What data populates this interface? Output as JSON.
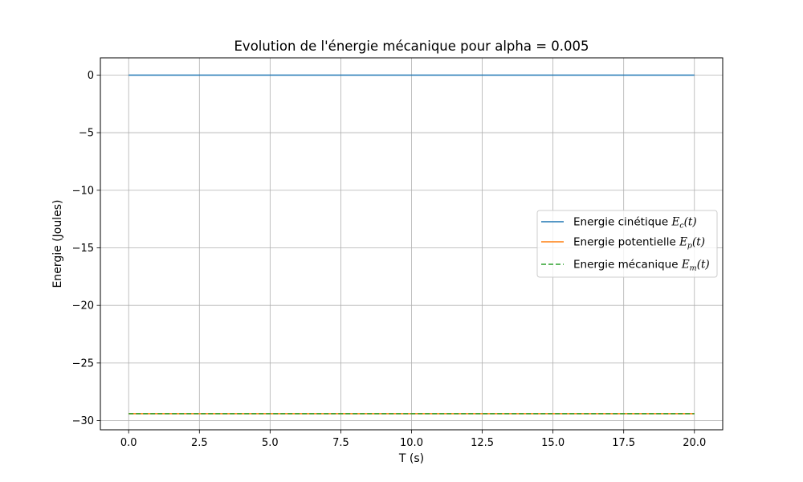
{
  "chart_data": {
    "type": "line",
    "title": "Evolution de l'énergie mécanique pour alpha = 0.005",
    "xlabel": "T (s)",
    "ylabel": "Energie (Joules)",
    "xlim": [
      -1.0,
      21.0
    ],
    "ylim": [
      -30.8,
      1.5
    ],
    "xticks": [
      0.0,
      2.5,
      5.0,
      7.5,
      10.0,
      12.5,
      15.0,
      17.5,
      20.0
    ],
    "xtick_labels": [
      "0.0",
      "2.5",
      "5.0",
      "7.5",
      "10.0",
      "12.5",
      "15.0",
      "17.5",
      "20.0"
    ],
    "yticks": [
      0,
      -5,
      -10,
      -15,
      -20,
      -25,
      -30
    ],
    "ytick_labels": [
      "0",
      "−5",
      "−10",
      "−15",
      "−20",
      "−25",
      "−30"
    ],
    "grid": true,
    "legend_position": "center-right",
    "series": [
      {
        "name": "Energie cinétique",
        "label_prefix": "Energie cinétique ",
        "label_symbol": "E",
        "label_sub": "c",
        "label_arg": "(t)",
        "color": "#1f77b4",
        "dash": "solid",
        "x": [
          0,
          20
        ],
        "y": [
          0,
          0
        ]
      },
      {
        "name": "Energie potentielle",
        "label_prefix": "Energie potentielle ",
        "label_symbol": "E",
        "label_sub": "p",
        "label_arg": "(t)",
        "color": "#ff7f0e",
        "dash": "solid",
        "x": [
          0,
          20
        ],
        "y": [
          -29.4,
          -29.4
        ]
      },
      {
        "name": "Energie mécanique",
        "label_prefix": "Energie mécanique ",
        "label_symbol": "E",
        "label_sub": "m",
        "label_arg": "(t)",
        "color": "#2ca02c",
        "dash": "dashed",
        "x": [
          0,
          20
        ],
        "y": [
          -29.4,
          -29.4
        ]
      }
    ]
  }
}
